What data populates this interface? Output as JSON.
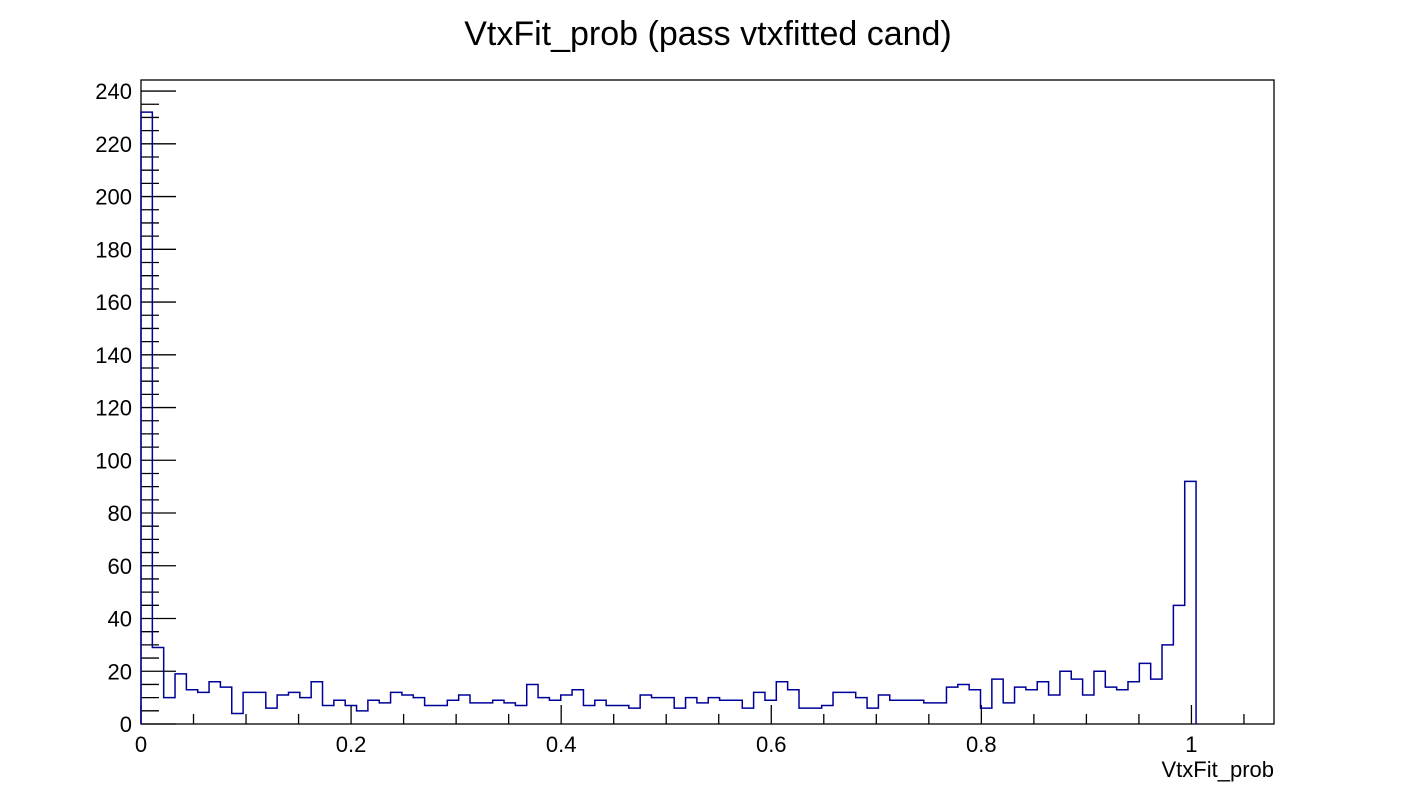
{
  "chart_data": {
    "type": "bar",
    "style": "step-histogram",
    "title": "VtxFit_prob (pass vtxfitted cand)",
    "xlabel": "VtxFit_prob",
    "ylabel": "",
    "xlim": [
      0,
      1.0786
    ],
    "ylim": [
      0,
      244.2
    ],
    "x_tick_labels": [
      "0",
      "0.2",
      "0.4",
      "0.6",
      "0.8",
      "1"
    ],
    "x_ticks": [
      0,
      0.2,
      0.4,
      0.6,
      0.8,
      1.0
    ],
    "x_minor_step": 0.05,
    "y_tick_labels": [
      "0",
      "20",
      "40",
      "60",
      "80",
      "100",
      "120",
      "140",
      "160",
      "180",
      "200",
      "220",
      "240"
    ],
    "y_ticks": [
      0,
      20,
      40,
      60,
      80,
      100,
      120,
      140,
      160,
      180,
      200,
      220,
      240
    ],
    "y_minor_step": 5,
    "grid": false,
    "bin_start": 0,
    "bin_width": 0.0108,
    "values": [
      232,
      29,
      10,
      19,
      13,
      12,
      16,
      14,
      4,
      12,
      12,
      6,
      11,
      12,
      10,
      16,
      7,
      9,
      7,
      5,
      9,
      8,
      12,
      11,
      10,
      7,
      7,
      9,
      11,
      8,
      8,
      9,
      8,
      7,
      15,
      10,
      9,
      11,
      13,
      7,
      9,
      7,
      7,
      6,
      11,
      10,
      10,
      6,
      10,
      8,
      10,
      9,
      9,
      6,
      12,
      9,
      16,
      13,
      6,
      6,
      7,
      12,
      12,
      10,
      6,
      11,
      9,
      9,
      9,
      8,
      8,
      14,
      15,
      13,
      6,
      17,
      8,
      14,
      13,
      16,
      11,
      20,
      17,
      11,
      20,
      14,
      13,
      16,
      23,
      17,
      30,
      45,
      92
    ],
    "line_color": "#000099"
  }
}
